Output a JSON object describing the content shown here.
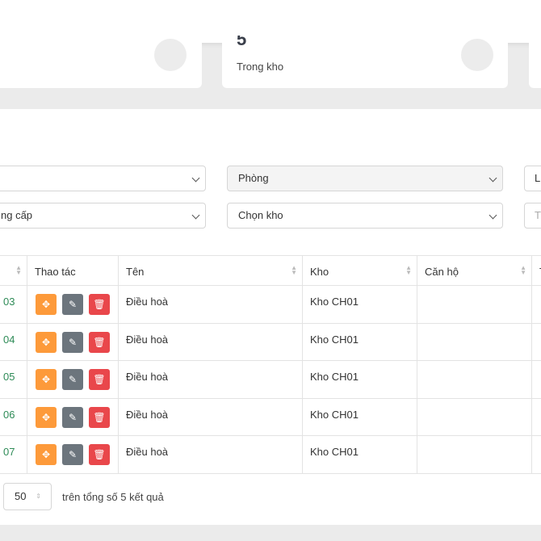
{
  "cards": [
    {
      "value": "5",
      "label": "Trong kho"
    }
  ],
  "filters": {
    "room": "Phòng",
    "type_fragment": "L",
    "level_fragment": "ng cấp",
    "warehouse": "Chọn kho",
    "search_fragment": "T"
  },
  "table": {
    "headers": [
      "Thao tác",
      "Tên",
      "Kho",
      "Căn hộ",
      "T"
    ],
    "rows": [
      {
        "code": "03",
        "name": "Điều hoà",
        "warehouse": "Kho CH01"
      },
      {
        "code": "04",
        "name": "Điều hoà",
        "warehouse": "Kho CH01"
      },
      {
        "code": "05",
        "name": "Điều hoà",
        "warehouse": "Kho CH01"
      },
      {
        "code": "06",
        "name": "Điều hoà",
        "warehouse": "Kho CH01"
      },
      {
        "code": "07",
        "name": "Điều hoà",
        "warehouse": "Kho CH01"
      }
    ]
  },
  "pagination": {
    "page_size": "50",
    "summary": "trên tổng số 5 kết quả"
  }
}
